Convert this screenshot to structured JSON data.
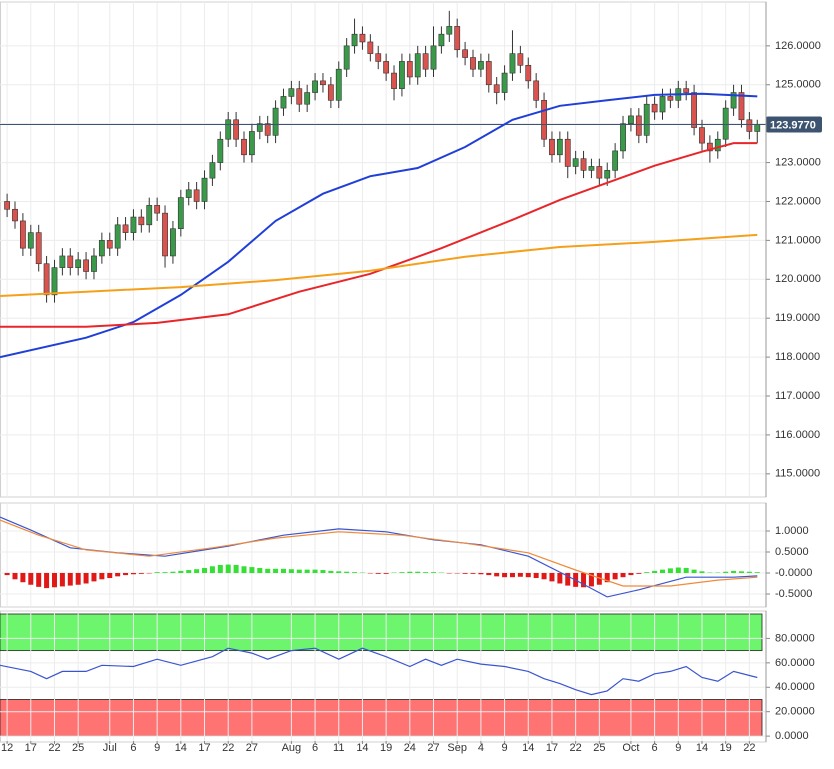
{
  "chart_data": [
    {
      "type": "candlestick",
      "xlim": [
        -0.9,
        95.6
      ],
      "ylim": [
        114.43,
        127.05
      ],
      "grid": true,
      "up_color": "#3a9a4a",
      "down_color": "#d9534f",
      "yticks": [
        {
          "value": 115,
          "label": "115.0000"
        },
        {
          "value": 116,
          "label": "116.0000"
        },
        {
          "value": 117,
          "label": "117.0000"
        },
        {
          "value": 118,
          "label": "118.0000"
        },
        {
          "value": 119,
          "label": "119.0000"
        },
        {
          "value": 120,
          "label": "120.0000"
        },
        {
          "value": 121,
          "label": "121.0000"
        },
        {
          "value": 122,
          "label": "122.0000"
        },
        {
          "value": 123,
          "label": "123.0000"
        },
        {
          "value": 124,
          "label": "124.0000"
        },
        {
          "value": 125,
          "label": "125.0000"
        },
        {
          "value": 126,
          "label": "126.0000"
        }
      ],
      "xticks": [
        {
          "value": 0,
          "label": "12"
        },
        {
          "value": 3,
          "label": "17"
        },
        {
          "value": 6,
          "label": "22"
        },
        {
          "value": 9,
          "label": "25"
        },
        {
          "value": 13,
          "label": "Jul"
        },
        {
          "value": 16,
          "label": "6"
        },
        {
          "value": 19,
          "label": "9"
        },
        {
          "value": 22,
          "label": "14"
        },
        {
          "value": 25,
          "label": "17"
        },
        {
          "value": 28,
          "label": "22"
        },
        {
          "value": 31,
          "label": "27"
        },
        {
          "value": 36,
          "label": "Aug"
        },
        {
          "value": 39,
          "label": "6"
        },
        {
          "value": 42,
          "label": "11"
        },
        {
          "value": 45,
          "label": "14"
        },
        {
          "value": 48,
          "label": "19"
        },
        {
          "value": 51,
          "label": "24"
        },
        {
          "value": 54,
          "label": "27"
        },
        {
          "value": 57,
          "label": "Sep"
        },
        {
          "value": 60,
          "label": "4"
        },
        {
          "value": 63,
          "label": "9"
        },
        {
          "value": 66,
          "label": "14"
        },
        {
          "value": 69,
          "label": "17"
        },
        {
          "value": 72,
          "label": "22"
        },
        {
          "value": 75,
          "label": "25"
        },
        {
          "value": 79,
          "label": "Oct"
        },
        {
          "value": 82,
          "label": "6"
        },
        {
          "value": 85,
          "label": "9"
        },
        {
          "value": 88,
          "label": "14"
        },
        {
          "value": 91,
          "label": "19"
        },
        {
          "value": 94,
          "label": "22"
        }
      ],
      "open": [
        122.0,
        121.8,
        121.5,
        120.8,
        121.2,
        120.4,
        119.6,
        120.3,
        120.6,
        120.3,
        120.5,
        120.2,
        120.6,
        121.0,
        120.8,
        121.4,
        121.2,
        121.6,
        121.4,
        121.9,
        121.7,
        120.6,
        121.3,
        122.1,
        122.3,
        122.0,
        122.6,
        123.0,
        123.6,
        124.1,
        123.6,
        123.2,
        123.8,
        124.0,
        123.7,
        124.4,
        124.7,
        124.9,
        124.5,
        124.8,
        125.1,
        125.0,
        124.6,
        125.4,
        126.0,
        126.3,
        126.1,
        125.8,
        125.6,
        125.3,
        124.9,
        125.6,
        125.2,
        125.8,
        125.4,
        126.0,
        126.3,
        126.5,
        125.9,
        125.7,
        125.4,
        125.6,
        125.0,
        124.8,
        125.3,
        125.8,
        125.5,
        125.1,
        124.6,
        123.6,
        123.2,
        123.6,
        122.9,
        123.1,
        122.8,
        122.9,
        122.6,
        122.8,
        123.3,
        124.0,
        124.2,
        123.7,
        124.5,
        124.3,
        124.7,
        124.6,
        124.9,
        124.8,
        123.9,
        123.5,
        123.3,
        123.6,
        124.4,
        124.8,
        124.1,
        123.8
      ],
      "high": [
        122.2,
        122.0,
        121.7,
        121.4,
        121.4,
        120.6,
        120.5,
        120.8,
        120.8,
        120.7,
        120.7,
        120.8,
        121.2,
        121.2,
        121.6,
        121.6,
        121.8,
        121.8,
        122.1,
        122.1,
        121.9,
        121.5,
        122.3,
        122.5,
        122.5,
        122.8,
        123.2,
        123.8,
        124.3,
        124.3,
        123.8,
        124.0,
        124.2,
        124.2,
        124.6,
        124.9,
        125.1,
        125.1,
        125.0,
        125.3,
        125.3,
        125.2,
        125.6,
        126.2,
        126.7,
        126.5,
        126.3,
        126.0,
        125.8,
        125.5,
        125.8,
        125.8,
        126.0,
        126.0,
        126.5,
        126.5,
        126.9,
        126.7,
        126.1,
        125.9,
        125.8,
        125.8,
        125.2,
        125.5,
        126.4,
        126.0,
        125.7,
        125.3,
        124.8,
        123.8,
        123.8,
        123.8,
        123.3,
        123.3,
        123.1,
        123.1,
        123.0,
        123.5,
        124.2,
        124.4,
        124.4,
        124.7,
        124.7,
        124.9,
        124.9,
        125.1,
        125.1,
        125.0,
        124.1,
        123.7,
        123.8,
        124.6,
        125.0,
        125.0,
        124.3,
        124.1
      ],
      "low": [
        121.6,
        121.3,
        120.6,
        120.6,
        120.2,
        119.4,
        119.4,
        120.1,
        120.1,
        120.1,
        120.0,
        120.0,
        120.4,
        120.6,
        120.6,
        121.0,
        121.0,
        121.2,
        121.2,
        121.5,
        120.3,
        120.4,
        121.1,
        121.9,
        121.8,
        121.8,
        122.4,
        122.8,
        123.4,
        123.4,
        123.0,
        123.0,
        123.6,
        123.5,
        123.5,
        124.2,
        124.5,
        124.3,
        124.3,
        124.6,
        124.8,
        124.4,
        124.4,
        125.2,
        125.8,
        125.9,
        125.6,
        125.4,
        125.1,
        124.6,
        124.7,
        125.0,
        125.0,
        125.2,
        125.2,
        125.8,
        126.1,
        125.7,
        125.5,
        125.2,
        125.2,
        124.8,
        124.5,
        124.6,
        125.1,
        125.3,
        124.9,
        124.4,
        123.4,
        123.0,
        123.0,
        122.6,
        122.7,
        122.6,
        122.6,
        122.4,
        122.4,
        122.6,
        123.1,
        123.8,
        123.5,
        123.5,
        124.1,
        124.1,
        124.4,
        124.4,
        124.6,
        123.7,
        123.3,
        123.0,
        123.1,
        123.4,
        124.2,
        123.9,
        123.6,
        123.5
      ],
      "close": [
        121.8,
        121.5,
        120.8,
        121.2,
        120.4,
        119.6,
        120.3,
        120.6,
        120.3,
        120.5,
        120.2,
        120.6,
        121.0,
        120.8,
        121.4,
        121.2,
        121.6,
        121.4,
        121.9,
        121.7,
        120.6,
        121.3,
        122.1,
        122.3,
        122.0,
        122.6,
        123.0,
        123.6,
        124.1,
        123.6,
        123.2,
        123.8,
        124.0,
        123.7,
        124.4,
        124.7,
        124.9,
        124.5,
        124.8,
        125.1,
        125.0,
        124.6,
        125.4,
        126.0,
        126.3,
        126.1,
        125.8,
        125.6,
        125.3,
        124.9,
        125.6,
        125.2,
        125.8,
        125.4,
        126.0,
        126.3,
        126.5,
        125.9,
        125.7,
        125.4,
        125.6,
        125.0,
        124.8,
        125.3,
        125.8,
        125.5,
        125.1,
        124.6,
        123.6,
        123.2,
        123.6,
        122.9,
        123.1,
        122.8,
        122.9,
        122.6,
        122.8,
        123.3,
        124.0,
        124.2,
        123.7,
        124.5,
        124.3,
        124.7,
        124.6,
        124.9,
        124.8,
        123.9,
        123.5,
        123.3,
        123.6,
        124.4,
        124.8,
        124.1,
        123.8,
        123.977
      ],
      "lines": [
        {
          "color": "#1f3fd8",
          "x": [
            -0.9,
            10,
            16,
            22,
            28,
            34,
            40,
            46,
            52,
            58,
            64,
            70,
            76,
            82,
            88,
            95
          ],
          "values": [
            118.0,
            118.5,
            118.9,
            119.6,
            120.45,
            121.5,
            122.2,
            122.65,
            122.86,
            123.4,
            124.1,
            124.46,
            124.6,
            124.74,
            124.77,
            124.7
          ]
        },
        {
          "color": "#e8262a",
          "x": [
            -0.9,
            10,
            19,
            28,
            37,
            46,
            55,
            64,
            70,
            76,
            82,
            88,
            92,
            95
          ],
          "values": [
            118.78,
            118.78,
            118.88,
            119.1,
            119.68,
            120.14,
            120.8,
            121.53,
            122.04,
            122.48,
            122.92,
            123.28,
            123.5,
            123.5
          ]
        },
        {
          "color": "#f5a01a",
          "x": [
            -0.9,
            10,
            22,
            34,
            46,
            58,
            70,
            82,
            95
          ],
          "values": [
            119.57,
            119.68,
            119.8,
            119.98,
            120.22,
            120.58,
            120.83,
            120.96,
            121.14
          ]
        }
      ],
      "last_price": {
        "value": 123.977,
        "label": "123.9770"
      },
      "last_price_color": "#3d5470"
    },
    {
      "type": "macd",
      "ylim": [
        -0.786,
        1.595
      ],
      "grid": true,
      "yticks": [
        {
          "value": -0.5,
          "label": "-0.5000"
        },
        {
          "value": 0,
          "label": "-0.0000"
        },
        {
          "value": 0.5,
          "label": "0.5000"
        },
        {
          "value": 1,
          "label": "1.0000"
        }
      ],
      "up_color": "#33e033",
      "down_color": "#e01818",
      "histogram": [
        -0.05,
        -0.15,
        -0.22,
        -0.28,
        -0.33,
        -0.36,
        -0.34,
        -0.32,
        -0.3,
        -0.28,
        -0.25,
        -0.2,
        -0.15,
        -0.12,
        -0.08,
        -0.05,
        -0.03,
        -0.02,
        -0.01,
        0.02,
        0.02,
        0.03,
        0.05,
        0.07,
        0.09,
        0.12,
        0.16,
        0.19,
        0.2,
        0.19,
        0.16,
        0.14,
        0.12,
        0.1,
        0.1,
        0.1,
        0.09,
        0.08,
        0.08,
        0.08,
        0.07,
        0.05,
        0.04,
        0.03,
        0.02,
        0.01,
        -0.01,
        -0.02,
        -0.02,
        0.01,
        0.02,
        0.03,
        0.03,
        0.02,
        0.02,
        0.01,
        -0.01,
        -0.01,
        -0.02,
        -0.02,
        -0.03,
        -0.05,
        -0.08,
        -0.1,
        -0.1,
        -0.09,
        -0.1,
        -0.12,
        -0.15,
        -0.2,
        -0.25,
        -0.3,
        -0.33,
        -0.34,
        -0.32,
        -0.28,
        -0.22,
        -0.15,
        -0.1,
        -0.05,
        -0.02,
        0.02,
        0.05,
        0.08,
        0.11,
        0.13,
        0.12,
        0.08,
        0.04,
        0.01,
        0.01,
        0.03,
        0.05,
        0.04,
        0.03,
        0.02
      ],
      "lines": [
        {
          "color": "#3a55d0",
          "x": [
            -0.9,
            3,
            8,
            14,
            20,
            28,
            35,
            42,
            48,
            54,
            60,
            66,
            72,
            76,
            80,
            86,
            92,
            95
          ],
          "values": [
            1.33,
            1.02,
            0.6,
            0.48,
            0.4,
            0.64,
            0.9,
            1.05,
            0.98,
            0.79,
            0.67,
            0.4,
            -0.17,
            -0.57,
            -0.4,
            -0.1,
            -0.1,
            -0.07
          ]
        },
        {
          "color": "#f08a3a",
          "x": [
            -0.9,
            4,
            10,
            18,
            26,
            34,
            42,
            50,
            58,
            66,
            72,
            78,
            84,
            90,
            95
          ],
          "values": [
            1.26,
            0.9,
            0.55,
            0.4,
            0.6,
            0.83,
            0.98,
            0.9,
            0.71,
            0.48,
            0.07,
            -0.31,
            -0.31,
            -0.17,
            -0.1
          ]
        }
      ]
    },
    {
      "type": "rsi",
      "ylim": [
        -4,
        100
      ],
      "grid": true,
      "yticks": [
        {
          "value": 0,
          "label": "0.0000"
        },
        {
          "value": 20,
          "label": "20.0000"
        },
        {
          "value": 40,
          "label": "40.0000"
        },
        {
          "value": 60,
          "label": "60.0000"
        },
        {
          "value": 80,
          "label": "80.0000"
        }
      ],
      "bands": [
        {
          "from": 70,
          "to": 100,
          "color": "#6ef56e"
        },
        {
          "from": 0,
          "to": 30,
          "color": "#ff7373"
        }
      ],
      "lines": [
        {
          "color": "#3a55d0",
          "x": [
            -0.9,
            3,
            5,
            7,
            10,
            12,
            16,
            19,
            22,
            26,
            28,
            31,
            33,
            36,
            39,
            42,
            45,
            48,
            51,
            53,
            55,
            57,
            60,
            63,
            66,
            68,
            70,
            72,
            74,
            76,
            78,
            80,
            82,
            84,
            86,
            88,
            90,
            92,
            95
          ],
          "values": [
            58,
            53,
            47,
            53,
            53,
            58,
            57,
            63,
            58,
            65,
            72,
            68,
            63,
            70,
            72,
            63,
            72,
            65,
            57,
            63,
            58,
            63,
            59,
            57,
            53,
            47,
            43,
            38,
            34,
            37,
            47,
            45,
            51,
            53,
            57,
            48,
            45,
            53,
            48
          ]
        }
      ]
    }
  ]
}
